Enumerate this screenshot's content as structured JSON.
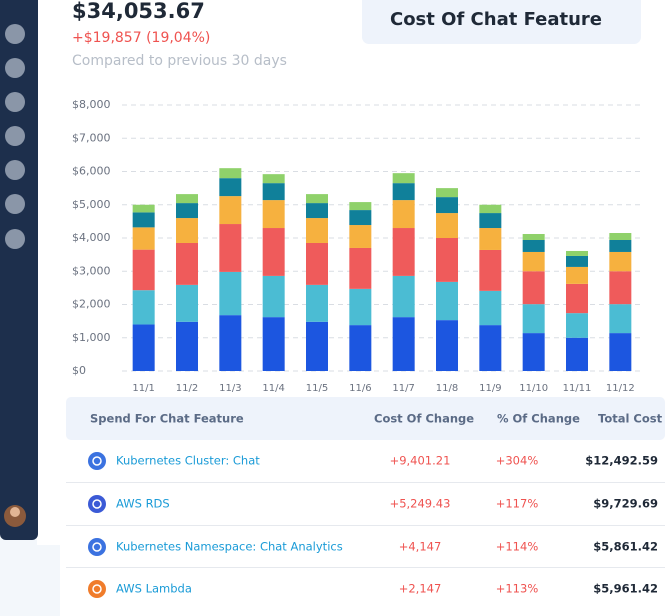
{
  "header": {
    "amount": "$34,053.67",
    "change": "+$19,857 (19,04%)",
    "comparison": "Compared to previous 30 days"
  },
  "card": {
    "title": "Cost Of Chat Feature"
  },
  "chart_data": {
    "type": "stacked_bar",
    "categories": [
      "11/1",
      "11/2",
      "11/3",
      "11/4",
      "11/5",
      "11/6",
      "11/7",
      "11/8",
      "11/9",
      "11/10",
      "11/11",
      "11/12"
    ],
    "series": [
      {
        "color": "#1c56e0",
        "values": [
          1400,
          1480,
          1680,
          1620,
          1480,
          1380,
          1620,
          1530,
          1380,
          1140,
          1000,
          1140
        ]
      },
      {
        "color": "#4bbcd3",
        "values": [
          1030,
          1110,
          1300,
          1240,
          1110,
          1090,
          1240,
          1150,
          1030,
          870,
          740,
          870
        ]
      },
      {
        "color": "#ef5b5b",
        "values": [
          1220,
          1260,
          1440,
          1440,
          1260,
          1230,
          1440,
          1320,
          1230,
          990,
          880,
          990
        ]
      },
      {
        "color": "#f6b13f",
        "values": [
          670,
          750,
          840,
          840,
          750,
          690,
          840,
          750,
          660,
          580,
          510,
          580
        ]
      },
      {
        "color": "#10809a",
        "values": [
          450,
          450,
          540,
          510,
          450,
          450,
          510,
          480,
          450,
          360,
          330,
          360
        ]
      },
      {
        "color": "#8fd16a",
        "values": [
          230,
          270,
          300,
          270,
          270,
          240,
          300,
          270,
          250,
          180,
          150,
          210
        ]
      }
    ],
    "ylim": [
      0,
      8000
    ],
    "yticks": [
      {
        "value": 0,
        "label": "$0"
      },
      {
        "value": 1000,
        "label": "$1,000"
      },
      {
        "value": 2000,
        "label": "$2,000"
      },
      {
        "value": 3000,
        "label": "$3,000"
      },
      {
        "value": 4000,
        "label": "$4,000"
      },
      {
        "value": 5000,
        "label": "$5,000"
      },
      {
        "value": 6000,
        "label": "$6,000"
      },
      {
        "value": 7000,
        "label": "$7,000"
      },
      {
        "value": 8000,
        "label": "$8,000"
      }
    ],
    "grid": true
  },
  "table": {
    "columns": [
      "Spend For Chat Feature",
      "Cost Of Change",
      "% Of Change",
      "Total Cost"
    ],
    "rows": [
      [
        "Kubernetes Cluster: Chat",
        "+9,401.21",
        "+304%",
        "$12,492.59"
      ],
      [
        "AWS RDS",
        "+5,249.43",
        "+117%",
        "$9,729.69"
      ],
      [
        "Kubernetes Namespace: Chat Analytics",
        "+4,147",
        "+114%",
        "$5,861.42"
      ],
      [
        "AWS Lambda",
        "+2,147",
        "+113%",
        "$5,961.42"
      ]
    ]
  }
}
